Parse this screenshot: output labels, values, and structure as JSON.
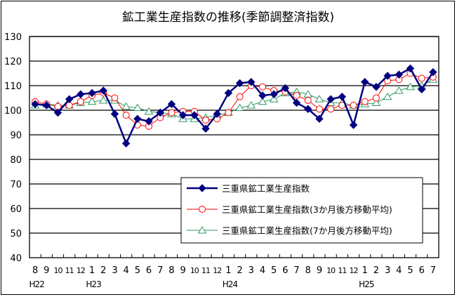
{
  "chart_data": {
    "type": "line",
    "title": "鉱工業生産指数の推移(季節調整済指数)",
    "xlabel": "",
    "ylabel": "",
    "ylim": [
      40,
      130
    ],
    "yticks": [
      40,
      50,
      60,
      70,
      80,
      90,
      100,
      110,
      120,
      130
    ],
    "grid": true,
    "legend_position": "bottom-right",
    "categories": [
      "8",
      "9",
      "10",
      "11",
      "12",
      "1",
      "2",
      "3",
      "4",
      "5",
      "6",
      "7",
      "8",
      "9",
      "10",
      "11",
      "12",
      "1",
      "2",
      "3",
      "4",
      "5",
      "6",
      "7",
      "8",
      "9",
      "10",
      "11",
      "12",
      "1",
      "2",
      "3",
      "4",
      "5",
      "6",
      "7"
    ],
    "year_labels": [
      {
        "label": "H22",
        "index": 0
      },
      {
        "label": "H23",
        "index": 5
      },
      {
        "label": "H24",
        "index": 17
      },
      {
        "label": "H25",
        "index": 29
      }
    ],
    "series": [
      {
        "name": "三重県鉱工業生産指数",
        "color": "#000080",
        "marker": "diamond",
        "values": [
          102.5,
          102,
          99,
          104.5,
          106.5,
          107,
          108,
          98.5,
          86.5,
          96.5,
          95.5,
          99,
          102.5,
          98,
          98,
          92.5,
          98.5,
          107,
          111,
          111.5,
          106,
          106.5,
          109,
          103,
          100.5,
          96.5,
          104.5,
          105.5,
          94,
          111.5,
          109.5,
          114,
          114.5,
          117,
          108.5,
          115.5
        ]
      },
      {
        "name": "三重県鉱工業生産指数(3か月後方移動平均)",
        "color": "#ff0000",
        "marker": "circle",
        "values": [
          103.5,
          102.5,
          101.5,
          102,
          103.5,
          106,
          107,
          105,
          98,
          94,
          93.5,
          97,
          99,
          99.5,
          99.5,
          96,
          96.5,
          99,
          105.5,
          110,
          109.5,
          108,
          107.5,
          106,
          104,
          100.5,
          100.5,
          102,
          102,
          103.5,
          105,
          112,
          112.5,
          115,
          113,
          113.5
        ]
      },
      {
        "name": "三重県鉱工業生産指数(7か月後方移動平均)",
        "color": "#339966",
        "marker": "triangle",
        "values": [
          102,
          102.5,
          102,
          102,
          103,
          103.5,
          104,
          104,
          101.5,
          101,
          99.5,
          99,
          98.5,
          96.5,
          96.5,
          97,
          98,
          99,
          101,
          102,
          103.5,
          104.5,
          107,
          107.5,
          106.5,
          104.5,
          103,
          103,
          102,
          102.5,
          103,
          105.5,
          108,
          109.5,
          110,
          112.5
        ]
      }
    ]
  }
}
